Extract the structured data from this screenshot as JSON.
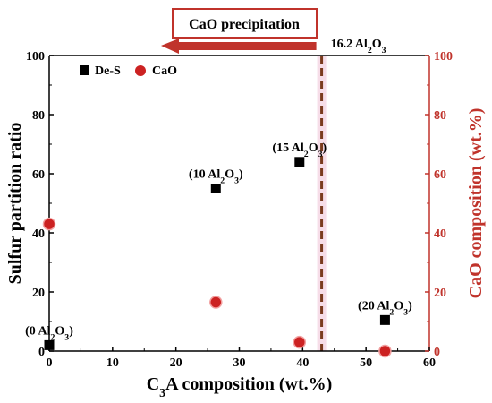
{
  "colors": {
    "left_axis": "#000000",
    "right_axis": "#c0332b",
    "marker_red": "#cc2222",
    "marker_black": "#000000",
    "dashed_line": "#7a3b1e",
    "band": "#f6dde8",
    "arrow_border": "#c0332b"
  },
  "chart_data": {
    "type": "scatter",
    "xlabel": "C3A composition (wt.%)",
    "ylabel": "Sulfur partition ratio",
    "y2label": "CaO composition (wt.%)",
    "xlim": [
      0,
      60
    ],
    "ylim": [
      0,
      100
    ],
    "y2lim": [
      0,
      100
    ],
    "x_ticks": [
      "0",
      "10",
      "20",
      "30",
      "40",
      "50",
      "60"
    ],
    "y_ticks": [
      "0",
      "20",
      "40",
      "60",
      "80",
      "100"
    ],
    "y2_ticks": [
      "0",
      "20",
      "40",
      "60",
      "80",
      "100"
    ],
    "legend": {
      "placement": "top-left",
      "entries": [
        "De-S",
        "CaO"
      ]
    },
    "series": [
      {
        "name": "De-S",
        "marker": "square",
        "axis": "left",
        "points": [
          {
            "x": 0,
            "y": 2
          },
          {
            "x": 26.3,
            "y": 55
          },
          {
            "x": 39.5,
            "y": 64
          },
          {
            "x": 53,
            "y": 10.5
          }
        ]
      },
      {
        "name": "CaO",
        "marker": "circle",
        "axis": "right",
        "points": [
          {
            "x": 0,
            "y": 43
          },
          {
            "x": 26.3,
            "y": 16.5
          },
          {
            "x": 39.5,
            "y": 3
          },
          {
            "x": 53,
            "y": 0
          }
        ]
      }
    ],
    "annotations": [
      {
        "text": "(0 Al2O3)",
        "x": 0,
        "y": 2
      },
      {
        "text": "(10 Al2O3)",
        "x": 26.3,
        "y": 55
      },
      {
        "text": "(15 Al2O3)",
        "x": 39.5,
        "y": 64
      },
      {
        "text": "(20 Al2O3)",
        "x": 53,
        "y": 10.5
      }
    ],
    "threshold": {
      "x": 43,
      "label": "16.2 Al2O3"
    },
    "region_label": "CaO precipitation"
  }
}
